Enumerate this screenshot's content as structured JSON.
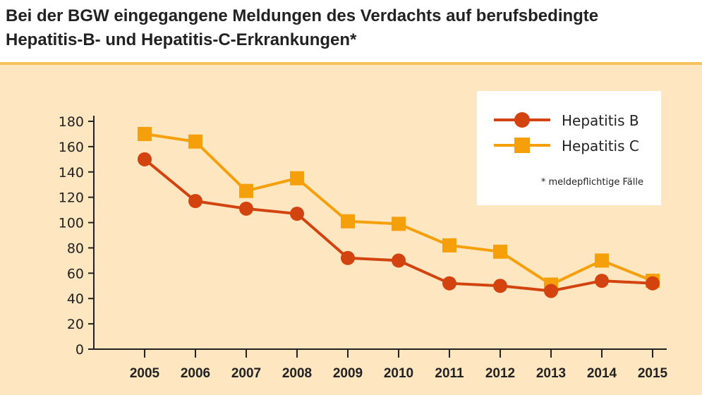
{
  "chart_data": {
    "type": "line",
    "title_lines": [
      "Bei der BGW eingegangene Meldungen des Verdachts auf berufsbedingte",
      "Hepatitis-B- und Hepatitis-C-Erkrankungen*"
    ],
    "x": [
      "2005",
      "2006",
      "2007",
      "2008",
      "2009",
      "2010",
      "2011",
      "2012",
      "2013",
      "2014",
      "2015"
    ],
    "series": [
      {
        "name": "Hepatitis B",
        "color": "#d2430f",
        "marker": "circle",
        "values": [
          150,
          117,
          111,
          107,
          72,
          70,
          52,
          50,
          46,
          54,
          52
        ]
      },
      {
        "name": "Hepatitis C",
        "color": "#f5a00a",
        "marker": "square",
        "values": [
          170,
          164,
          125,
          135,
          101,
          99,
          82,
          77,
          51,
          70,
          54
        ]
      }
    ],
    "ylim": [
      0,
      180
    ],
    "yticks": [
      0,
      20,
      40,
      60,
      80,
      100,
      120,
      140,
      160,
      180
    ],
    "legend_position": "top-right",
    "footnote": "* meldepflichtige Fälle",
    "grid": false
  }
}
